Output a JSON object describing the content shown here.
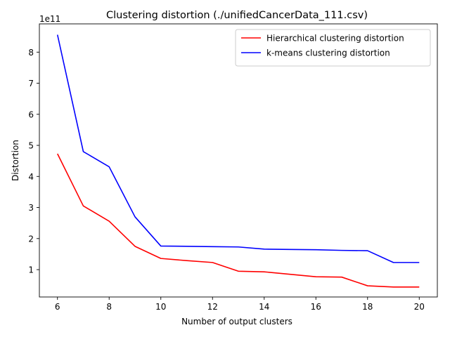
{
  "chart_data": {
    "type": "line",
    "title": "Clustering distortion (./unifiedCancerData_111.csv)",
    "xlabel": "Number of output clusters",
    "ylabel": "Distortion",
    "y_offset_label": "1e11",
    "y_scale": 100000000000,
    "xlim": [
      5.3,
      20.7
    ],
    "ylim": [
      0.12,
      8.91
    ],
    "x_ticks": [
      6,
      8,
      10,
      12,
      14,
      16,
      18,
      20
    ],
    "y_ticks": [
      1,
      2,
      3,
      4,
      5,
      6,
      7,
      8
    ],
    "x": [
      6,
      7,
      8,
      9,
      10,
      11,
      12,
      13,
      14,
      15,
      16,
      17,
      18,
      19,
      20
    ],
    "series": [
      {
        "name": "Hierarchical clustering distortion",
        "color": "#ff0000",
        "values": [
          4.73,
          3.05,
          2.56,
          1.75,
          1.36,
          1.29,
          1.23,
          0.95,
          0.93,
          0.85,
          0.77,
          0.76,
          0.48,
          0.44,
          0.44
        ]
      },
      {
        "name": "k-means clustering distortion",
        "color": "#0000ff",
        "values": [
          8.56,
          4.8,
          4.31,
          2.7,
          1.76,
          1.75,
          1.74,
          1.73,
          1.66,
          1.65,
          1.64,
          1.62,
          1.61,
          1.23,
          1.23
        ]
      }
    ],
    "grid": false,
    "legend_position": "top-right"
  }
}
